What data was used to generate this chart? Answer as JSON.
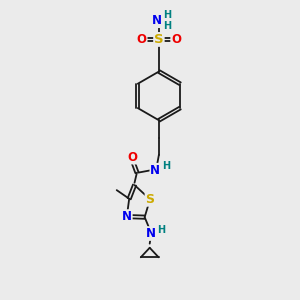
{
  "bg_color": "#ebebeb",
  "bond_color": "#1a1a1a",
  "atom_colors": {
    "N": "#0000ee",
    "O": "#ee0000",
    "S_sulfonyl": "#ccaa00",
    "S_thiazole": "#ccaa00",
    "H": "#008080",
    "C": "#1a1a1a"
  },
  "font_size_atom": 8.5,
  "font_size_h": 7.0,
  "figsize": [
    3.0,
    3.0
  ],
  "dpi": 100
}
